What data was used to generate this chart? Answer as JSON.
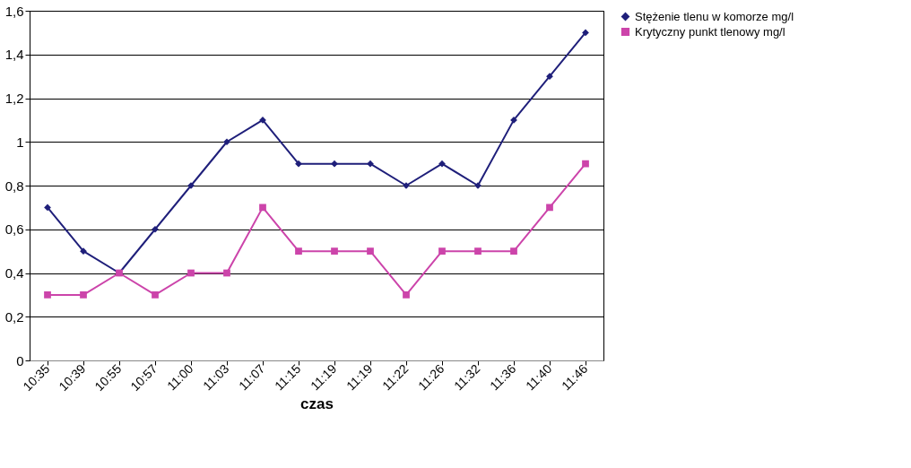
{
  "chart_data": {
    "type": "line",
    "xlabel": "czas",
    "categories": [
      "10:35",
      "10:39",
      "10:55",
      "10:57",
      "11:00",
      "11:03",
      "11:07",
      "11:15",
      "11:19",
      "11:19",
      "11:22",
      "11:26",
      "11:32",
      "11:36",
      "11:40",
      "11:46"
    ],
    "series": [
      {
        "name": "Stężenie tlenu w komorze  mg/l",
        "color": "#1f1f7a",
        "marker": "diamond",
        "values": [
          0.7,
          0.5,
          0.4,
          0.6,
          0.8,
          1.0,
          1.1,
          0.9,
          0.9,
          0.9,
          0.8,
          0.9,
          0.8,
          1.1,
          1.3,
          1.5
        ]
      },
      {
        "name": "Krytyczny punkt tlenowy  mg/l",
        "color": "#cc44aa",
        "marker": "square",
        "values": [
          0.3,
          0.3,
          0.4,
          0.3,
          0.4,
          0.4,
          0.7,
          0.5,
          0.5,
          0.5,
          0.3,
          0.5,
          0.5,
          0.5,
          0.7,
          0.9
        ]
      }
    ],
    "ylim": [
      0,
      1.6
    ],
    "yticks": [
      0,
      {
        "value": 0.2,
        "label": "0,2"
      },
      {
        "value": 0.4,
        "label": "0,4"
      },
      {
        "value": 0.6,
        "label": "0,6"
      },
      {
        "value": 0.8,
        "label": "0,8"
      },
      1,
      {
        "value": 1.2,
        "label": "1,2"
      },
      {
        "value": 1.4,
        "label": "1,4"
      },
      {
        "value": 1.6,
        "label": "1,6"
      }
    ],
    "grid": "y",
    "legend": "right",
    "line_style": "solid"
  }
}
